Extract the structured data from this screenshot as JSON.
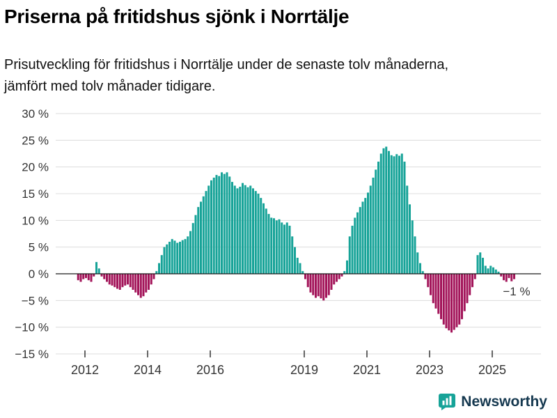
{
  "title": "Priserna på fritidshus sjönk i Norrtälje",
  "subtitle_lines": [
    "Prisutveckling för fritidshus i Norrtälje under de senaste tolv månaderna,",
    "jämfört med tolv månader tidigare."
  ],
  "branding": {
    "name": "Newsworthy",
    "icon": "bar-chart-badge-icon",
    "icon_color": "#17a398",
    "text_color": "#15384f"
  },
  "chart_data": {
    "type": "bar",
    "title": "Priserna på fritidshus sjönk i Norrtälje",
    "xlabel": "",
    "ylabel": "",
    "unit": "%",
    "x_start": "2011-10",
    "x_frequency": "monthly",
    "ylim": [
      -15,
      30
    ],
    "grid": true,
    "legend": false,
    "yticks": [
      30,
      25,
      20,
      15,
      10,
      5,
      0,
      -5,
      -10,
      -15
    ],
    "ytick_labels": [
      "30 %",
      "25 %",
      "20 %",
      "15 %",
      "10 %",
      "5 %",
      "0 %",
      "−5 %",
      "−10 %",
      "−15 %"
    ],
    "xtick_years": [
      2012,
      2014,
      2016,
      2019,
      2021,
      2023,
      2025
    ],
    "xtick_labels": [
      "2012",
      "2014",
      "2016",
      "2019",
      "2021",
      "2023",
      "2025"
    ],
    "positive_color": "#17a398",
    "negative_color": "#a3155a",
    "annotation": {
      "text": "−1 %",
      "value": -1,
      "position": "last-bar"
    },
    "values": [
      -1.2,
      -1.5,
      -1.0,
      -0.8,
      -1.2,
      -1.5,
      -0.5,
      2.2,
      1.0,
      -0.5,
      -1.0,
      -1.5,
      -2.0,
      -2.2,
      -2.5,
      -2.8,
      -3.0,
      -2.5,
      -2.2,
      -2.0,
      -2.5,
      -3.0,
      -3.5,
      -4.0,
      -4.5,
      -4.2,
      -3.5,
      -3.0,
      -2.0,
      -1.0,
      0.5,
      2.0,
      3.5,
      5.0,
      5.5,
      6.0,
      6.5,
      6.2,
      5.8,
      6.0,
      6.3,
      6.5,
      7.0,
      8.0,
      9.5,
      11.0,
      12.5,
      13.5,
      14.5,
      15.5,
      16.5,
      17.5,
      18.0,
      18.5,
      18.3,
      19.0,
      18.7,
      19.0,
      18.2,
      17.2,
      16.5,
      16.0,
      16.3,
      17.0,
      16.6,
      16.2,
      16.5,
      16.0,
      15.5,
      15.0,
      14.2,
      13.2,
      12.2,
      11.2,
      10.5,
      10.4,
      10.0,
      10.2,
      9.6,
      9.2,
      9.6,
      9.0,
      7.0,
      5.0,
      3.0,
      2.0,
      0.5,
      -1.0,
      -2.5,
      -3.5,
      -4.0,
      -4.5,
      -4.2,
      -4.6,
      -5.0,
      -4.5,
      -4.0,
      -3.0,
      -2.0,
      -1.5,
      -1.0,
      -0.5,
      0.5,
      2.5,
      7.0,
      9.0,
      10.5,
      11.5,
      12.5,
      13.5,
      14.2,
      15.2,
      16.5,
      18.0,
      19.5,
      21.0,
      22.5,
      23.5,
      23.8,
      23.0,
      22.2,
      22.0,
      22.4,
      22.1,
      22.5,
      21.0,
      16.5,
      13.0,
      10.0,
      7.0,
      4.0,
      2.0,
      0.5,
      -1.0,
      -2.5,
      -4.0,
      -5.5,
      -6.5,
      -7.5,
      -8.5,
      -9.5,
      -10.2,
      -10.6,
      -11.0,
      -10.5,
      -10.0,
      -9.5,
      -8.5,
      -7.0,
      -5.5,
      -4.0,
      -2.5,
      -1.0,
      3.5,
      4.0,
      3.0,
      1.5,
      1.0,
      1.5,
      1.2,
      0.8,
      0.4,
      -0.5,
      -1.2,
      -1.5,
      -0.8,
      -1.4,
      -1.0
    ]
  }
}
